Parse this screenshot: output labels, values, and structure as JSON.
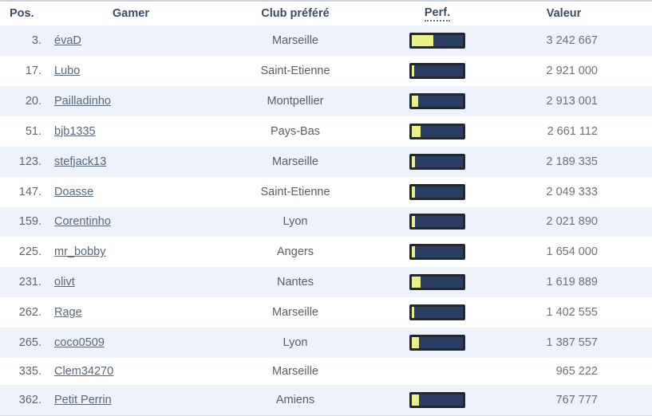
{
  "table": {
    "headers": {
      "pos": "Pos.",
      "gamer": "Gamer",
      "club": "Club préféré",
      "perf": "Perf.",
      "valeur": "Valeur"
    },
    "rows": [
      {
        "pos": "3.",
        "gamer": "évaD",
        "club": "Marseille",
        "perf_pct": 42,
        "valeur": "3 242 667"
      },
      {
        "pos": "17.",
        "gamer": "Lubo",
        "club": "Saint-Etienne",
        "perf_pct": 5,
        "valeur": "2 921 000"
      },
      {
        "pos": "20.",
        "gamer": "Pailladinho",
        "club": "Montpellier",
        "perf_pct": 12,
        "valeur": "2 913 001"
      },
      {
        "pos": "51.",
        "gamer": "bjb1335",
        "club": "Pays-Bas",
        "perf_pct": 17,
        "valeur": "2 661 112"
      },
      {
        "pos": "123.",
        "gamer": "stefjack13",
        "club": "Marseille",
        "perf_pct": 7,
        "valeur": "2 189 335"
      },
      {
        "pos": "147.",
        "gamer": "Doasse",
        "club": "Saint-Etienne",
        "perf_pct": 7,
        "valeur": "2 049 333"
      },
      {
        "pos": "159.",
        "gamer": "Corentinho",
        "club": "Lyon",
        "perf_pct": 7,
        "valeur": "2 021 890"
      },
      {
        "pos": "225.",
        "gamer": "mr_bobby",
        "club": "Angers",
        "perf_pct": 7,
        "valeur": "1 654 000"
      },
      {
        "pos": "231.",
        "gamer": "olivt",
        "club": "Nantes",
        "perf_pct": 17,
        "valeur": "1 619 889"
      },
      {
        "pos": "262.",
        "gamer": "Rage",
        "club": "Marseille",
        "perf_pct": 5,
        "valeur": "1 402 555"
      },
      {
        "pos": "265.",
        "gamer": "coco0509",
        "club": "Lyon",
        "perf_pct": 14,
        "valeur": "1 387 557"
      },
      {
        "pos": "335.",
        "gamer": "Clem34270",
        "club": "Marseille",
        "perf_pct": null,
        "valeur": "965 222"
      },
      {
        "pos": "362.",
        "gamer": "Petit Perrin",
        "club": "Amiens",
        "perf_pct": 14,
        "valeur": "767 777"
      }
    ]
  },
  "colors": {
    "stripe": "#edf2fb",
    "header_text": "#3c4b64",
    "bar_border": "#23272f",
    "bar_track": "#2a3e63",
    "bar_fill": "#e9f08b",
    "link": "#56687c"
  }
}
